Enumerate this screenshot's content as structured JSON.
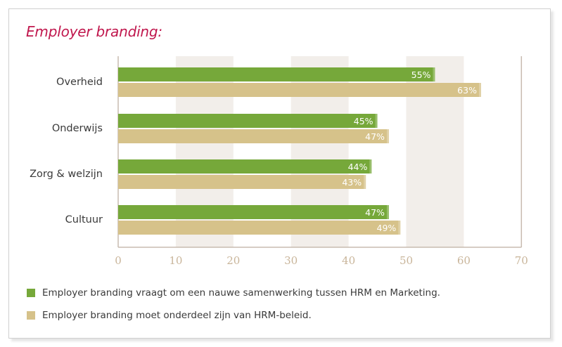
{
  "chart_data": {
    "type": "bar",
    "orientation": "horizontal",
    "title": "Employer branding:",
    "categories": [
      "Overheid",
      "Onderwijs",
      "Zorg & welzijn",
      "Cultuur"
    ],
    "series": [
      {
        "name": "Employer branding vraagt om een nauwe samenwerking tussen HRM en Marketing.",
        "values": [
          55,
          45,
          44,
          47
        ],
        "labels": [
          "55%",
          "45%",
          "44%",
          "47%"
        ],
        "color": "#76a83a"
      },
      {
        "name": "Employer branding moet onderdeel zijn van HRM-beleid.",
        "values": [
          63,
          47,
          43,
          49
        ],
        "labels": [
          "63%",
          "47%",
          "43%",
          "49%"
        ],
        "color": "#d6c28a"
      }
    ],
    "xlim": [
      0,
      70
    ],
    "xticks": [
      0,
      10,
      20,
      30,
      40,
      50,
      60,
      70
    ],
    "xtick_labels": [
      "0",
      "10",
      "20",
      "30",
      "40",
      "50",
      "60",
      "70"
    ],
    "alternating_bands": true,
    "band_color": "#f2eeea",
    "axis_color": "#c8bbb0",
    "tick_label_color": "#c9b59a",
    "legend_position": "bottom-left"
  }
}
